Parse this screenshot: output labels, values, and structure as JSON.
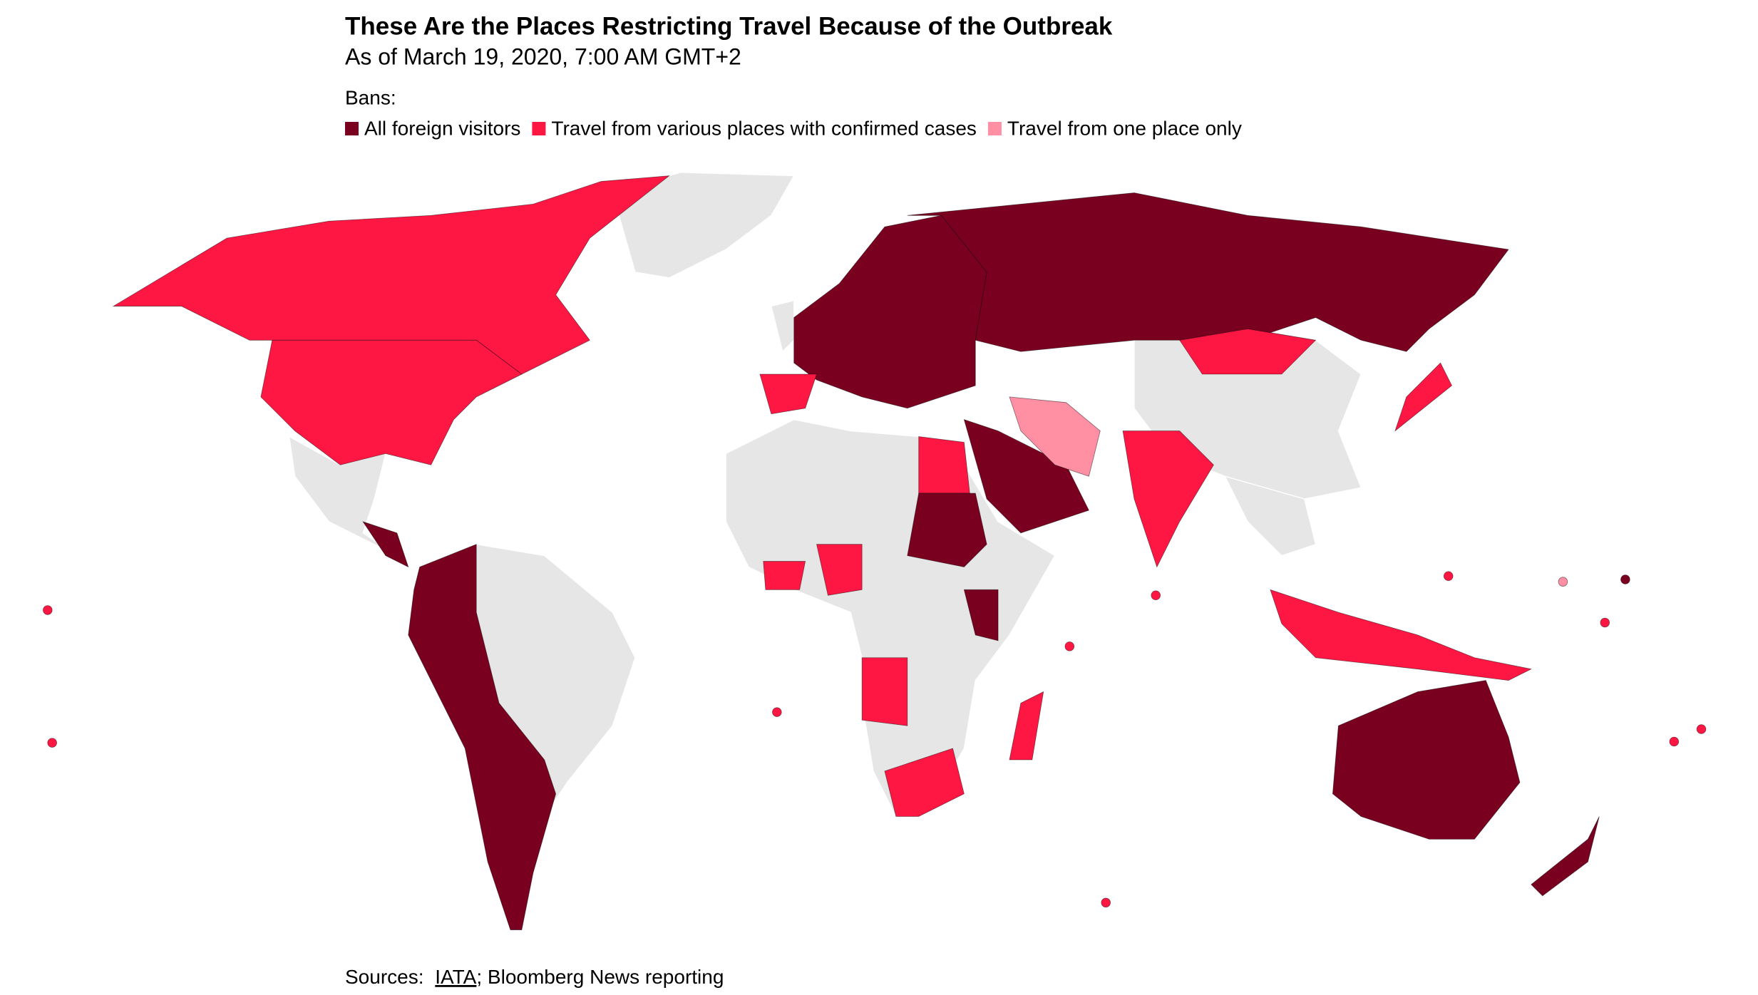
{
  "header": {
    "title": "These Are the Places Restricting Travel Because of the Outbreak",
    "subtitle": "As of March 19, 2020, 7:00 AM GMT+2"
  },
  "legend": {
    "title": "Bans:",
    "items": [
      {
        "label": "All foreign visitors",
        "color": "#7a0020"
      },
      {
        "label": "Travel from various places with confirmed cases",
        "color": "#ff1744"
      },
      {
        "label": "Travel from one place only",
        "color": "#ff8fa3"
      }
    ]
  },
  "footer": {
    "prefix": "Sources:",
    "link": "IATA",
    "rest": "; Bloomberg News reporting"
  }
}
